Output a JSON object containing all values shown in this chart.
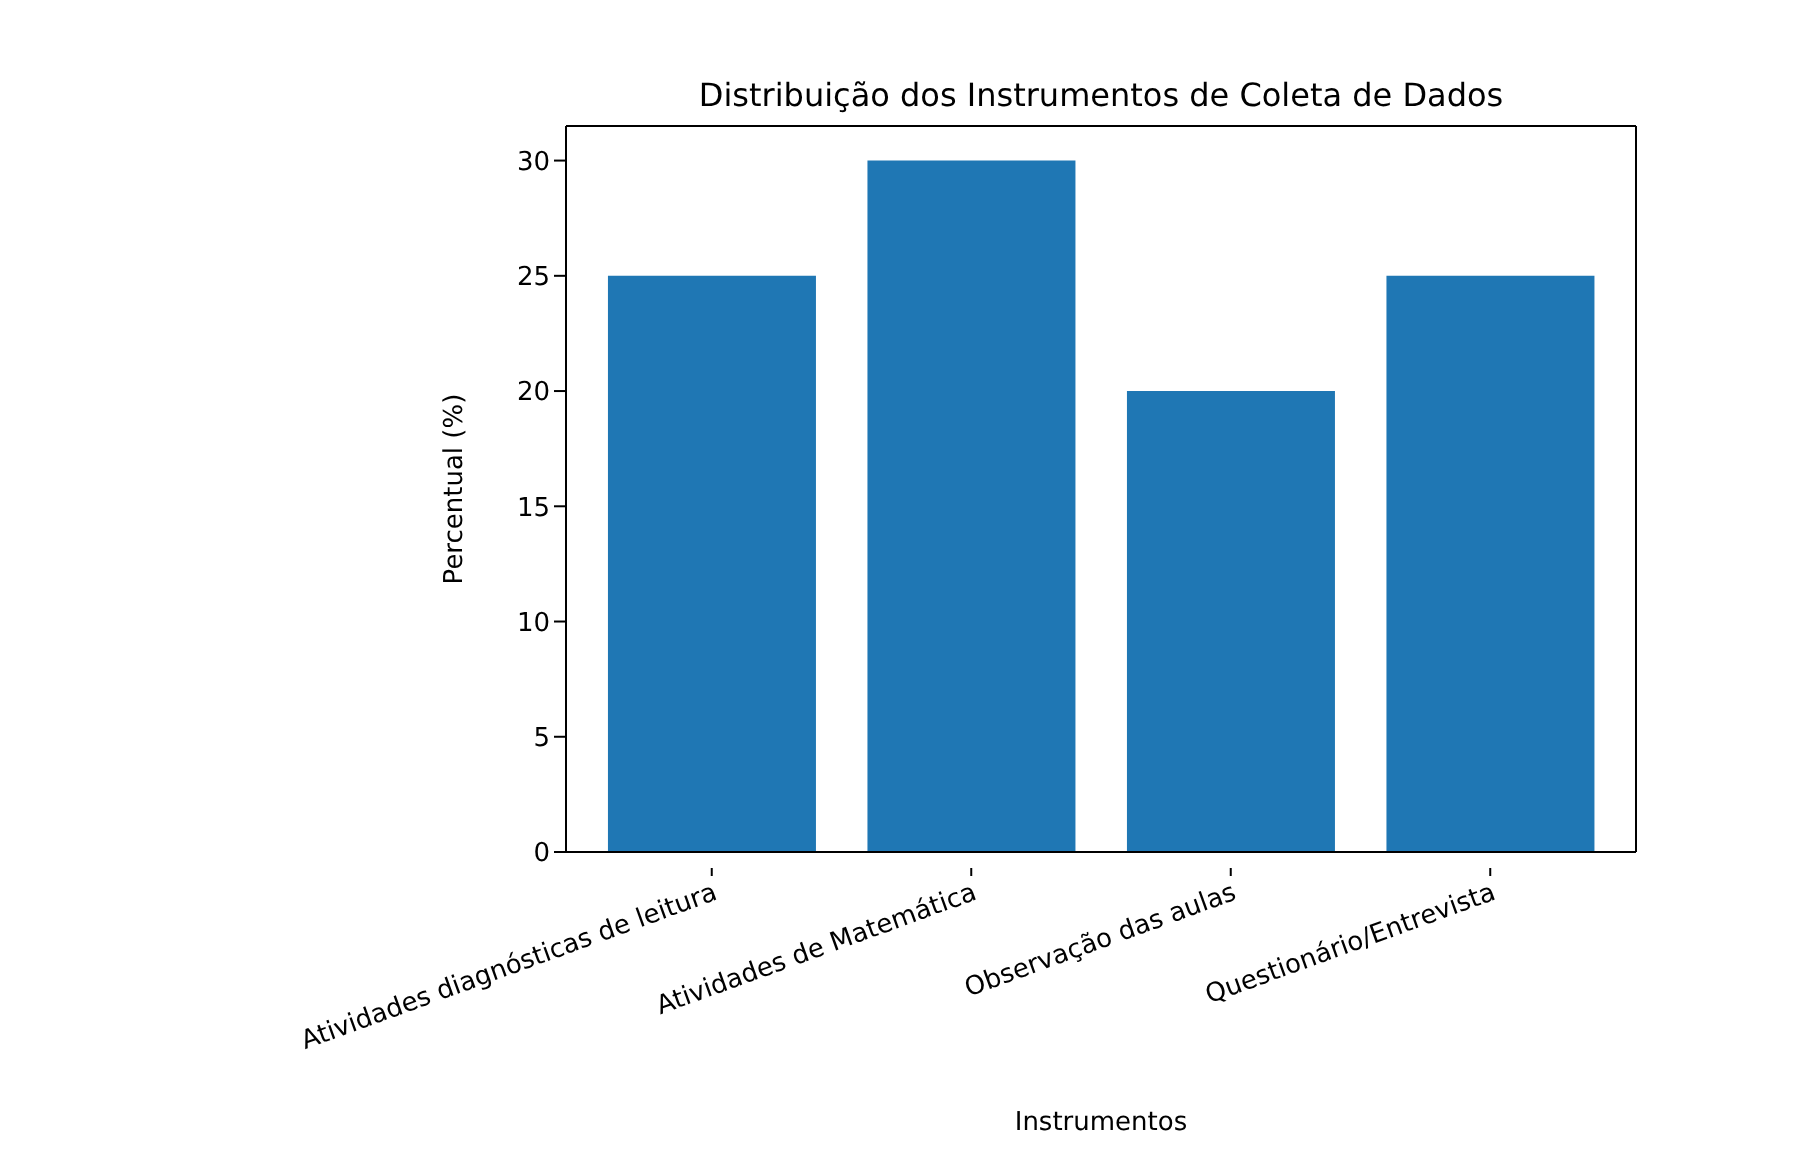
{
  "chart_data": {
    "type": "bar",
    "title": "Distribuição dos Instrumentos de Coleta de Dados",
    "xlabel": "Instrumentos",
    "ylabel": "Percentual (%)",
    "categories": [
      "Atividades diagnósticas de leitura",
      "Atividades de Matemática",
      "Observação das aulas",
      "Questionário/Entrevista"
    ],
    "values": [
      25,
      30,
      20,
      25
    ],
    "color": "#1f77b4",
    "ylim": [
      0,
      31.5
    ],
    "yticks": [
      0,
      5,
      10,
      15,
      20,
      25,
      30
    ],
    "grid": false,
    "legend": false
  }
}
